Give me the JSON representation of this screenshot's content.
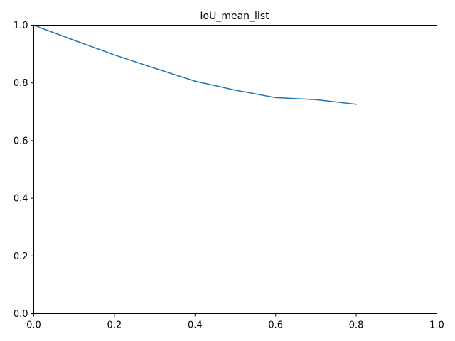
{
  "chart_data": {
    "type": "line",
    "title": "IoU_mean_list",
    "xlabel": "",
    "ylabel": "",
    "xlim": [
      0.0,
      1.0
    ],
    "ylim": [
      0.0,
      1.0
    ],
    "x_ticks": [
      "0.0",
      "0.2",
      "0.4",
      "0.6",
      "0.8",
      "1.0"
    ],
    "y_ticks": [
      "0.0",
      "0.2",
      "0.4",
      "0.6",
      "0.8",
      "1.0"
    ],
    "grid": false,
    "legend": "none",
    "series": [
      {
        "color": "#1f77b4",
        "x": [
          0.0,
          0.1,
          0.2,
          0.3,
          0.4,
          0.5,
          0.6,
          0.7,
          0.8
        ],
        "y": [
          1.0,
          0.948,
          0.897,
          0.851,
          0.806,
          0.775,
          0.749,
          0.742,
          0.726
        ]
      }
    ]
  }
}
